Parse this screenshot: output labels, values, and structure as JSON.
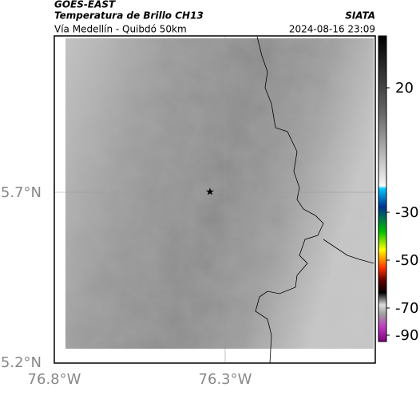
{
  "header": {
    "title": "GOES-EAST",
    "subtitle": "Temperatura de Brillo CH13",
    "region": "Vía Medellín - Quibdó 50km",
    "source": "SIATA",
    "timestamp": "2024-08-16 23:09"
  },
  "map": {
    "lat_labels": [
      "5.7°N",
      "5.2°N"
    ],
    "lon_labels": [
      "76.8°W",
      "76.3°W"
    ]
  },
  "colorbar": {
    "ticks": [
      20,
      -30,
      -50,
      -70,
      -90
    ]
  }
}
